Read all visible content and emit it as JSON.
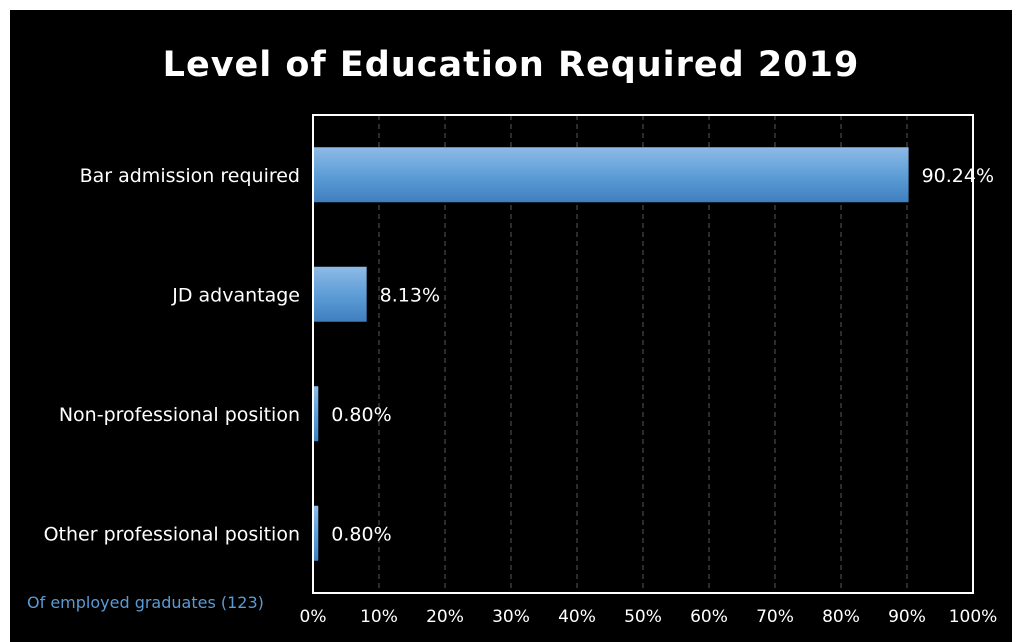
{
  "chart_data": {
    "type": "bar",
    "orientation": "horizontal",
    "title": "Level of Education Required 2019",
    "categories": [
      "Bar admission required",
      "JD advantage",
      "Non-professional position",
      "Other professional position"
    ],
    "values": [
      90.24,
      8.13,
      0.8,
      0.8
    ],
    "data_labels": [
      "90.24%",
      "8.13%",
      "0.80%",
      "0.80%"
    ],
    "xlim": [
      0,
      100
    ],
    "x_ticks": [
      "0%",
      "10%",
      "20%",
      "30%",
      "40%",
      "50%",
      "60%",
      "70%",
      "80%",
      "90%",
      "100%"
    ],
    "grid": true,
    "footnote": "Of employed graduates (123)",
    "colors": {
      "background": "#000000",
      "bar": "#5b9bd5",
      "bar_light": "#8dbbe7",
      "bar_dark": "#3f7fbf",
      "text": "#ffffff",
      "gridline": "#595959",
      "plot_border": "#ffffff",
      "footnote": "#5b9bd5"
    }
  }
}
